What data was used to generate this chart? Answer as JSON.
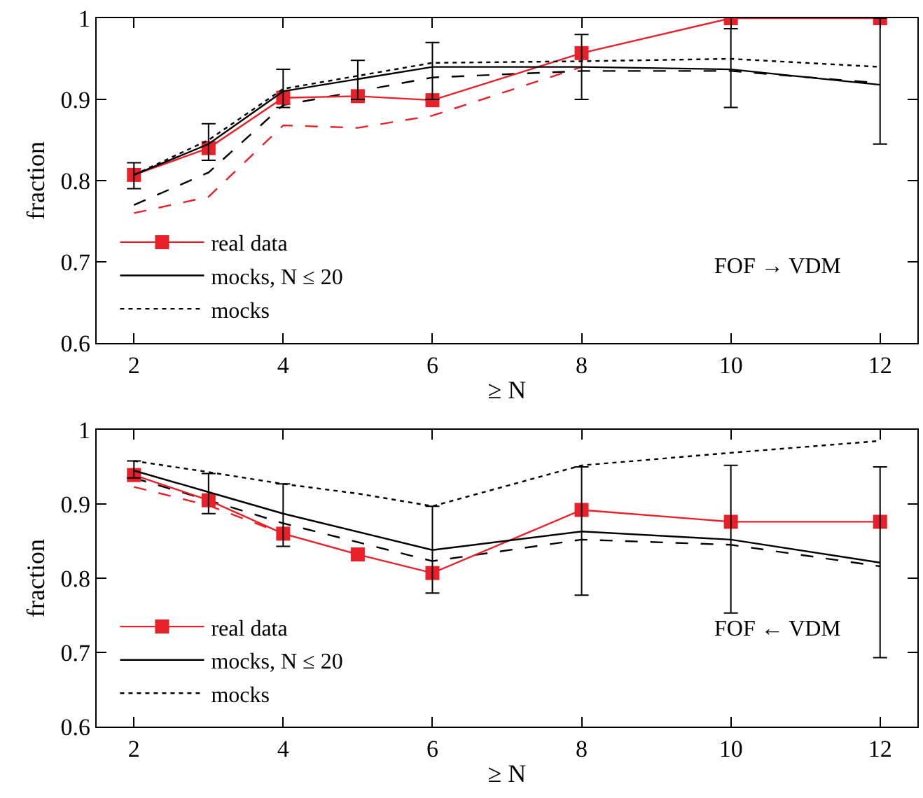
{
  "chart_data": [
    {
      "type": "line",
      "xlabel": "≥ N",
      "ylabel": "fraction",
      "xlim": [
        1.5,
        12.5
      ],
      "ylim": [
        0.6,
        1
      ],
      "xticks": [
        2,
        4,
        6,
        8,
        10,
        12
      ],
      "yticks": [
        0.6,
        0.7,
        0.8,
        0.9,
        1
      ],
      "legend": "bottom left",
      "annotations": [
        "FOF → VDM"
      ],
      "series": [
        {
          "x": [
            2,
            3,
            4,
            6,
            8,
            10,
            12
          ],
          "color": "#000000",
          "line_style": "dashed",
          "marker": "none",
          "values": [
            0.77,
            0.81,
            0.893,
            0.927,
            0.935,
            0.935,
            0.92
          ]
        },
        {
          "x": [
            2,
            3,
            4,
            5,
            6,
            8
          ],
          "color": "#e8202a",
          "line_style": "dashed",
          "marker": "none",
          "values": [
            0.76,
            0.78,
            0.868,
            0.865,
            0.88,
            0.94
          ]
        },
        {
          "name": "real data",
          "x": [
            2,
            3,
            4,
            5,
            6,
            8,
            10,
            12
          ],
          "color": "#e8202a",
          "line_style": "solid",
          "marker": "square",
          "values": [
            0.807,
            0.84,
            0.902,
            0.904,
            0.899,
            0.957,
            1.0,
            1.0
          ]
        },
        {
          "name": "mocks, N ≤ 20",
          "x": [
            2,
            3,
            4,
            5,
            6,
            8,
            10,
            12
          ],
          "color": "#000000",
          "line_style": "solid",
          "marker": "none",
          "values": [
            0.807,
            0.845,
            0.91,
            0.925,
            0.94,
            0.94,
            0.937,
            0.918
          ],
          "errors": [
            [
              0.79,
              0.822
            ],
            [
              0.825,
              0.87
            ],
            [
              0.89,
              0.937
            ],
            [
              0.9,
              0.948
            ],
            [
              0.9,
              0.97
            ],
            [
              0.9,
              0.98
            ],
            [
              0.89,
              0.987
            ],
            [
              0.845,
              1.0
            ]
          ]
        },
        {
          "name": "mocks",
          "x": [
            2,
            3,
            4,
            6,
            8,
            10,
            12
          ],
          "color": "#000000",
          "line_style": "dotted",
          "marker": "none",
          "values": [
            0.807,
            0.85,
            0.913,
            0.945,
            0.947,
            0.95,
            0.94
          ]
        }
      ]
    },
    {
      "type": "line",
      "xlabel": "≥ N",
      "ylabel": "fraction",
      "xlim": [
        1.5,
        12.5
      ],
      "ylim": [
        0.6,
        1
      ],
      "xticks": [
        2,
        4,
        6,
        8,
        10,
        12
      ],
      "yticks": [
        0.6,
        0.7,
        0.8,
        0.9,
        1
      ],
      "legend": "bottom left",
      "annotations": [
        "FOF ← VDM"
      ],
      "series": [
        {
          "x": [
            2,
            3,
            4,
            6,
            8,
            10,
            12
          ],
          "color": "#000000",
          "line_style": "dashed",
          "marker": "none",
          "values": [
            0.935,
            0.905,
            0.874,
            0.823,
            0.852,
            0.845,
            0.816
          ]
        },
        {
          "x": [
            2,
            3,
            4
          ],
          "color": "#e8202a",
          "line_style": "dashed",
          "marker": "none",
          "values": [
            0.923,
            0.898,
            0.86
          ]
        },
        {
          "name": "real data",
          "x": [
            2,
            3,
            4,
            5,
            6,
            8,
            10,
            12
          ],
          "color": "#e8202a",
          "line_style": "solid",
          "marker": "square",
          "values": [
            0.939,
            0.905,
            0.86,
            0.832,
            0.807,
            0.892,
            0.876,
            0.876
          ]
        },
        {
          "name": "mocks, N ≤ 20",
          "x": [
            2,
            3,
            4,
            6,
            8,
            10,
            12
          ],
          "color": "#000000",
          "line_style": "solid",
          "marker": "none",
          "values": [
            0.945,
            0.916,
            0.887,
            0.838,
            0.863,
            0.852,
            0.821
          ],
          "errors": [
            [
              0.935,
              0.958
            ],
            [
              0.887,
              0.941
            ],
            [
              0.843,
              0.927
            ],
            [
              0.78,
              0.897
            ],
            [
              0.777,
              0.95
            ],
            [
              0.753,
              0.952
            ],
            [
              0.693,
              0.95
            ]
          ]
        },
        {
          "name": "mocks",
          "x": [
            2,
            3,
            4,
            5,
            6,
            8,
            10,
            12
          ],
          "color": "#000000",
          "line_style": "dotted",
          "marker": "none",
          "values": [
            0.958,
            0.943,
            0.927,
            0.914,
            0.897,
            0.952,
            0.969,
            0.985
          ]
        }
      ]
    }
  ]
}
